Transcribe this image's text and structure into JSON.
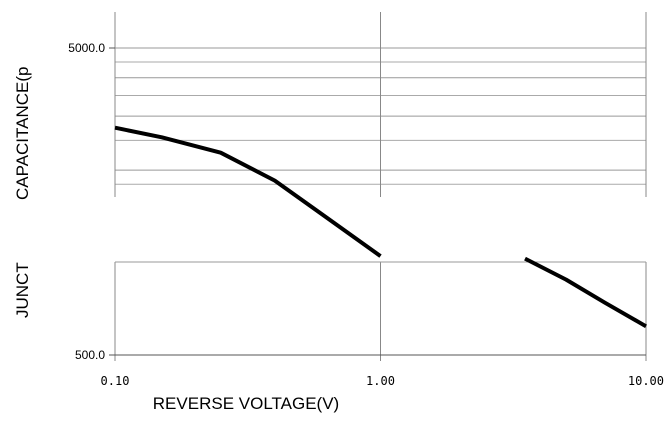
{
  "chart_data": {
    "type": "line",
    "title": "",
    "xlabel": "REVERSE VOLTAGE(V)",
    "ylabel_top": "CAPACITANCE(p",
    "ylabel_bottom": "JUNCT",
    "x_scale": "log",
    "y_scale": "log",
    "xlim": [
      0.1,
      10
    ],
    "ylim": [
      500,
      5000
    ],
    "x_ticks": [
      {
        "value": 0.1,
        "label": "0.10"
      },
      {
        "value": 1,
        "label": "1.00"
      },
      {
        "value": 10,
        "label": "10.00"
      }
    ],
    "y_ticks": [
      {
        "value": 5000,
        "label": "5000.0"
      },
      {
        "value": 500,
        "label": "500.0"
      }
    ],
    "grid": true,
    "series": [
      {
        "segments": [
          [
            [
              0.1,
              2750
            ],
            [
              0.15,
              2560
            ],
            [
              0.25,
              2280
            ],
            [
              0.4,
              1850
            ],
            [
              0.6,
              1440
            ],
            [
              1.0,
              1050
            ]
          ],
          [
            [
              3.5,
              1030
            ],
            [
              5.0,
              880
            ],
            [
              7.0,
              740
            ],
            [
              10.0,
              620
            ]
          ]
        ]
      }
    ]
  }
}
